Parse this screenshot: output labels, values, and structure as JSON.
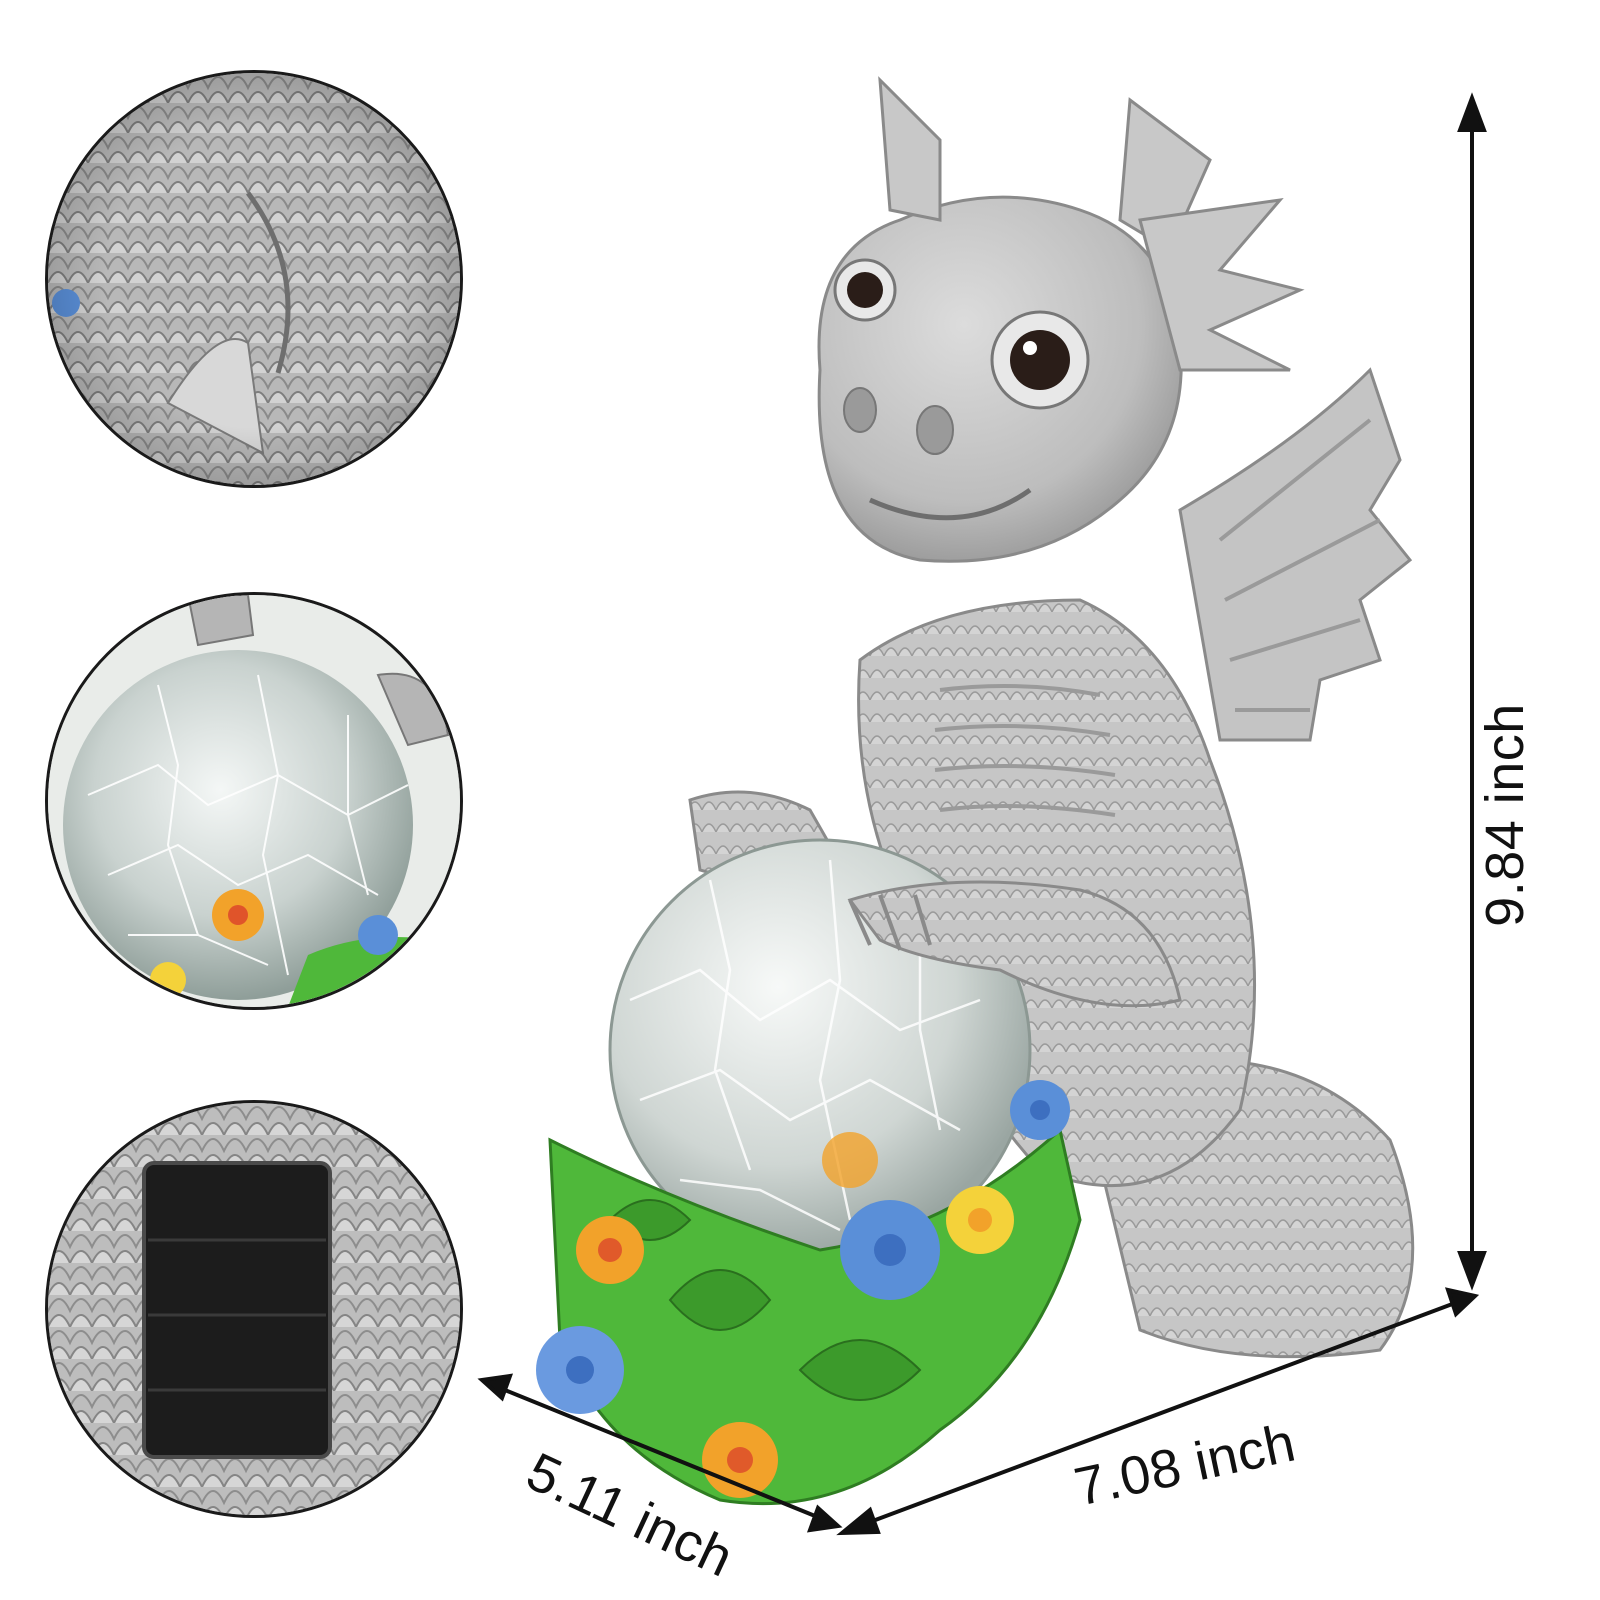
{
  "dimensions": {
    "height": "9.84 inch",
    "width": "7.08 inch",
    "depth": "5.11 inch"
  },
  "insets": [
    {
      "subject": "scale-texture-detail"
    },
    {
      "subject": "crackle-glass-globe-detail"
    },
    {
      "subject": "solar-panel-detail"
    }
  ],
  "colors": {
    "statue_stone": "#c8c8c8",
    "statue_shadow": "#8e8e8e",
    "leaf_green": "#4fb83a",
    "flower_blue": "#5a8fd8",
    "flower_orange": "#f2a22a",
    "flower_yellow": "#f4d23a",
    "solar_panel": "#161616",
    "outline": "#1a1a1a"
  }
}
